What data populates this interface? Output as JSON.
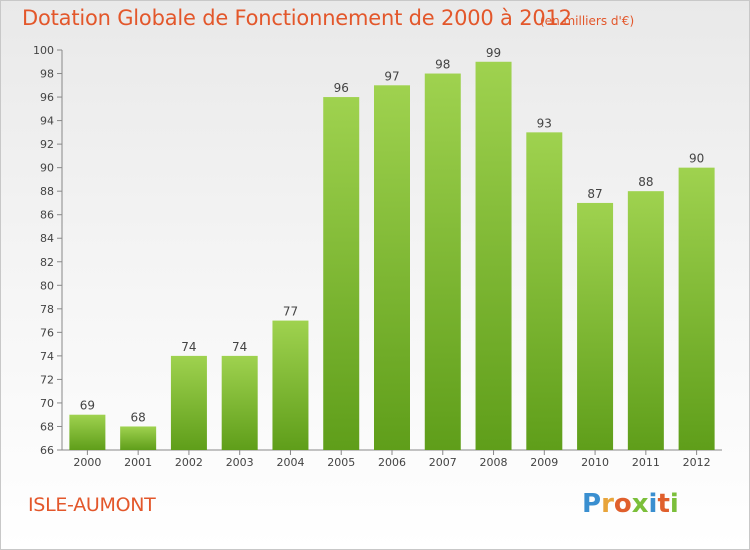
{
  "title": "Dotation Globale de Fonctionnement de 2000 à 2012",
  "subtitle": "(en milliers d'€)",
  "commune": "ISLE-AUMONT",
  "logo": {
    "text": "Proxiti",
    "letters": [
      "P",
      "r",
      "o",
      "x",
      "i",
      "t",
      "i"
    ],
    "letter_colors": [
      "#3a8fd0",
      "#e8a43a",
      "#e05f2c",
      "#7bbf3a",
      "#3a8fd0",
      "#e05f2c",
      "#7bbf3a"
    ]
  },
  "colors": {
    "accent": "#e3572b",
    "bar_light": "#9fd24f",
    "bar_dark": "#5f9e1a"
  },
  "chart_data": {
    "type": "bar",
    "categories": [
      "2000",
      "2001",
      "2002",
      "2003",
      "2004",
      "2005",
      "2006",
      "2007",
      "2008",
      "2009",
      "2010",
      "2011",
      "2012"
    ],
    "values": [
      69,
      68,
      74,
      74,
      77,
      96,
      97,
      98,
      99,
      93,
      87,
      88,
      90
    ],
    "ylim": [
      66,
      100
    ],
    "yticks": [
      66,
      68,
      70,
      72,
      74,
      76,
      78,
      80,
      82,
      84,
      86,
      88,
      90,
      92,
      94,
      96,
      98,
      100
    ],
    "grid": false,
    "legend": "none"
  }
}
